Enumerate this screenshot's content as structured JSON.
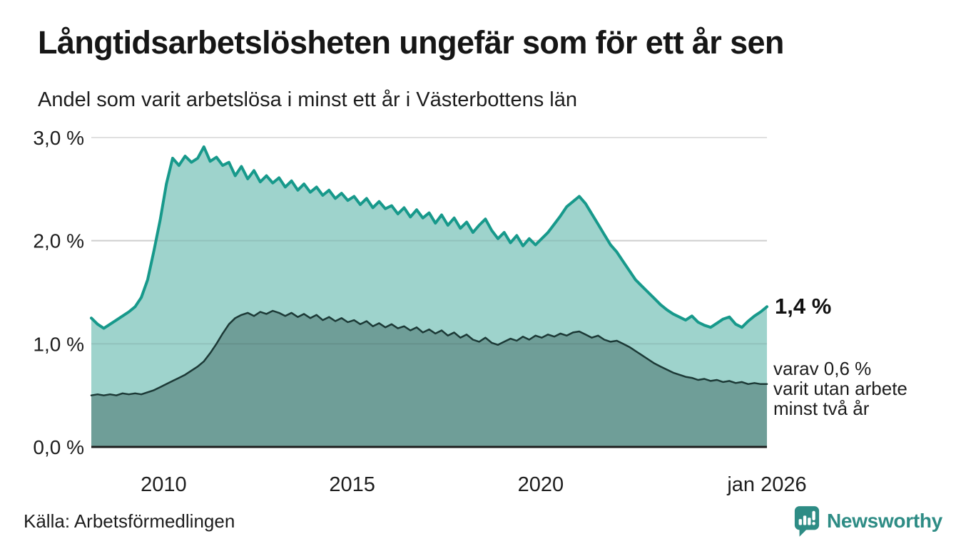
{
  "header": {
    "title": "Långtidsarbetslösheten ungefär som för ett år sen",
    "subtitle": "Andel som varit arbetslösa i minst ett år i Västerbottens län"
  },
  "chart_data": {
    "type": "area",
    "title": "Andel som varit arbetslösa i minst ett år i Västerbottens län",
    "unit": "%",
    "x_domain": [
      2008.083,
      2026.0
    ],
    "x_step_months": 2,
    "ylim": [
      0,
      3
    ],
    "grid": true,
    "y_ticks": [
      {
        "value": 0,
        "label": "0,0 %"
      },
      {
        "value": 1,
        "label": "1,0 %"
      },
      {
        "value": 2,
        "label": "2,0 %"
      },
      {
        "value": 3,
        "label": "3,0 %"
      }
    ],
    "x_ticks": [
      {
        "value": 2010.0,
        "label": "2010"
      },
      {
        "value": 2015.0,
        "label": "2015"
      },
      {
        "value": 2020.0,
        "label": "2020"
      },
      {
        "value": 2026.0,
        "label": "jan 2026"
      }
    ],
    "series": [
      {
        "name": "arbetslösa minst ett år",
        "latest_value": 1.4,
        "line_color": "#17998b",
        "fill_color": "#9ed3cc",
        "line_width": 4,
        "values": [
          1.25,
          1.19,
          1.15,
          1.19,
          1.23,
          1.27,
          1.31,
          1.36,
          1.45,
          1.62,
          1.9,
          2.2,
          2.55,
          2.8,
          2.73,
          2.82,
          2.76,
          2.8,
          2.91,
          2.77,
          2.81,
          2.73,
          2.76,
          2.63,
          2.72,
          2.6,
          2.68,
          2.57,
          2.63,
          2.56,
          2.61,
          2.52,
          2.58,
          2.49,
          2.55,
          2.47,
          2.52,
          2.44,
          2.49,
          2.41,
          2.46,
          2.39,
          2.43,
          2.35,
          2.41,
          2.32,
          2.38,
          2.31,
          2.34,
          2.26,
          2.32,
          2.23,
          2.3,
          2.22,
          2.27,
          2.17,
          2.25,
          2.15,
          2.22,
          2.12,
          2.18,
          2.08,
          2.15,
          2.21,
          2.1,
          2.02,
          2.08,
          1.98,
          2.05,
          1.95,
          2.02,
          1.96,
          2.02,
          2.08,
          2.16,
          2.24,
          2.33,
          2.38,
          2.43,
          2.36,
          2.26,
          2.16,
          2.06,
          1.96,
          1.89,
          1.8,
          1.71,
          1.62,
          1.56,
          1.5,
          1.44,
          1.38,
          1.33,
          1.29,
          1.26,
          1.23,
          1.27,
          1.21,
          1.18,
          1.16,
          1.2,
          1.24,
          1.26,
          1.19,
          1.16,
          1.22,
          1.27,
          1.31,
          1.36
        ]
      },
      {
        "name": "arbetslösa minst två år",
        "latest_value": 0.6,
        "line_color": "#1c3936",
        "fill_color": "#6f9e98",
        "line_width": 2.5,
        "values": [
          0.5,
          0.51,
          0.5,
          0.51,
          0.5,
          0.52,
          0.51,
          0.52,
          0.51,
          0.53,
          0.55,
          0.58,
          0.61,
          0.64,
          0.67,
          0.7,
          0.74,
          0.78,
          0.83,
          0.91,
          1.0,
          1.1,
          1.19,
          1.25,
          1.28,
          1.3,
          1.27,
          1.31,
          1.29,
          1.32,
          1.3,
          1.27,
          1.3,
          1.26,
          1.29,
          1.25,
          1.28,
          1.23,
          1.26,
          1.22,
          1.25,
          1.21,
          1.23,
          1.19,
          1.22,
          1.17,
          1.2,
          1.16,
          1.19,
          1.15,
          1.17,
          1.13,
          1.16,
          1.11,
          1.14,
          1.1,
          1.13,
          1.08,
          1.11,
          1.06,
          1.09,
          1.04,
          1.02,
          1.06,
          1.01,
          0.99,
          1.02,
          1.05,
          1.03,
          1.07,
          1.04,
          1.08,
          1.06,
          1.09,
          1.07,
          1.1,
          1.08,
          1.11,
          1.12,
          1.09,
          1.06,
          1.08,
          1.04,
          1.02,
          1.03,
          1.0,
          0.97,
          0.93,
          0.89,
          0.85,
          0.81,
          0.78,
          0.75,
          0.72,
          0.7,
          0.68,
          0.67,
          0.65,
          0.66,
          0.64,
          0.65,
          0.63,
          0.64,
          0.62,
          0.63,
          0.61,
          0.62,
          0.61,
          0.61
        ]
      }
    ],
    "gridline_color": "#e0e0e0",
    "axis_line_color": "#1d1d1d"
  },
  "annotations": {
    "latest_value": "1,4 %",
    "secondary": [
      "varav 0,6 %",
      "varit utan arbete",
      "minst två år"
    ]
  },
  "footer": {
    "source": "Källa: Arbetsförmedlingen",
    "brand": "Newsworthy",
    "brand_icon": "speech-bubble-bar-chart-icon",
    "brand_color": "#2e8c85"
  }
}
